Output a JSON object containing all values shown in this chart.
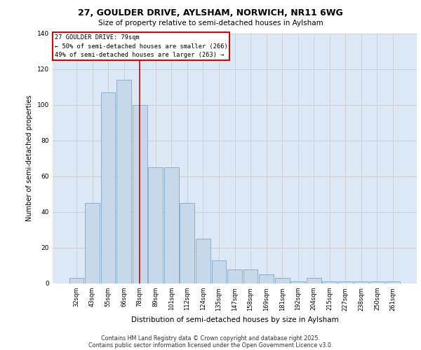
{
  "title1": "27, GOULDER DRIVE, AYLSHAM, NORWICH, NR11 6WG",
  "title2": "Size of property relative to semi-detached houses in Aylsham",
  "xlabel": "Distribution of semi-detached houses by size in Aylsham",
  "ylabel": "Number of semi-detached properties",
  "categories": [
    "32sqm",
    "43sqm",
    "55sqm",
    "66sqm",
    "78sqm",
    "89sqm",
    "101sqm",
    "112sqm",
    "124sqm",
    "135sqm",
    "147sqm",
    "158sqm",
    "169sqm",
    "181sqm",
    "192sqm",
    "204sqm",
    "215sqm",
    "227sqm",
    "238sqm",
    "250sqm",
    "261sqm"
  ],
  "values": [
    3,
    45,
    107,
    114,
    100,
    65,
    65,
    45,
    25,
    13,
    8,
    8,
    5,
    3,
    1,
    3,
    1,
    1,
    1,
    1,
    1
  ],
  "bar_color": "#c8d8eb",
  "bar_edge_color": "#8aafc8",
  "grid_color": "#c8c8c8",
  "background_color": "#dce8f5",
  "property_line_x": 4.0,
  "annotation_title": "27 GOULDER DRIVE: 79sqm",
  "annotation_line1": "← 50% of semi-detached houses are smaller (266)",
  "annotation_line2": "49% of semi-detached houses are larger (263) →",
  "annotation_box_color": "#ffffff",
  "annotation_box_edge": "#cc0000",
  "property_line_color": "#cc0000",
  "ylim": [
    0,
    140
  ],
  "yticks": [
    0,
    20,
    40,
    60,
    80,
    100,
    120,
    140
  ],
  "footnote1": "Contains HM Land Registry data © Crown copyright and database right 2025.",
  "footnote2": "Contains public sector information licensed under the Open Government Licence v3.0.",
  "fig_bg": "#ffffff"
}
